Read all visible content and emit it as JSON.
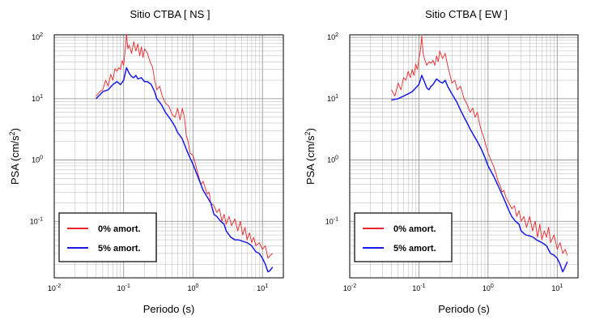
{
  "chart_data": [
    {
      "type": "line",
      "title": "Sitio CTBA [ NS ]",
      "xlabel": "Periodo (s)",
      "ylabel_main": "PSA (cm/s",
      "ylabel_sup": "2",
      "ylabel_close": ")",
      "x_scale": "log",
      "y_scale": "log",
      "xlim": [
        0.01,
        20
      ],
      "ylim": [
        0.012,
        110
      ],
      "grid": true,
      "legend_position": "bottom-left",
      "x_ticks": [
        {
          "value": 0.01,
          "base": "10",
          "exp": "-2"
        },
        {
          "value": 0.1,
          "base": "10",
          "exp": "-1"
        },
        {
          "value": 1,
          "base": "10",
          "exp": "0"
        },
        {
          "value": 10,
          "base": "10",
          "exp": "1"
        }
      ],
      "y_ticks": [
        {
          "value": 0.1,
          "base": "10",
          "exp": "-1"
        },
        {
          "value": 1,
          "base": "10",
          "exp": "0"
        },
        {
          "value": 10,
          "base": "10",
          "exp": "1"
        },
        {
          "value": 100,
          "base": "10",
          "exp": "2"
        }
      ],
      "series": [
        {
          "name": "0% amort.",
          "color": "#e8262a",
          "points": [
            [
              0.04,
              11
            ],
            [
              0.045,
              13
            ],
            [
              0.05,
              14
            ],
            [
              0.055,
              20
            ],
            [
              0.06,
              16
            ],
            [
              0.065,
              25
            ],
            [
              0.07,
              20
            ],
            [
              0.075,
              31
            ],
            [
              0.08,
              28
            ],
            [
              0.085,
              32
            ],
            [
              0.09,
              30
            ],
            [
              0.095,
              42
            ],
            [
              0.1,
              35
            ],
            [
              0.105,
              60
            ],
            [
              0.11,
              112
            ],
            [
              0.115,
              65
            ],
            [
              0.12,
              75
            ],
            [
              0.13,
              55
            ],
            [
              0.14,
              85
            ],
            [
              0.15,
              60
            ],
            [
              0.16,
              78
            ],
            [
              0.17,
              50
            ],
            [
              0.18,
              70
            ],
            [
              0.19,
              47
            ],
            [
              0.2,
              65
            ],
            [
              0.22,
              55
            ],
            [
              0.24,
              40
            ],
            [
              0.26,
              33
            ],
            [
              0.28,
              20
            ],
            [
              0.3,
              14
            ],
            [
              0.33,
              16
            ],
            [
              0.36,
              11
            ],
            [
              0.4,
              8.5
            ],
            [
              0.45,
              7.5
            ],
            [
              0.5,
              5.5
            ],
            [
              0.55,
              5
            ],
            [
              0.6,
              7
            ],
            [
              0.65,
              4.5
            ],
            [
              0.7,
              7
            ],
            [
              0.75,
              5
            ],
            [
              0.8,
              2.5
            ],
            [
              0.85,
              2
            ],
            [
              0.9,
              1.3
            ],
            [
              1.0,
              1.2
            ],
            [
              1.1,
              0.8
            ],
            [
              1.2,
              0.55
            ],
            [
              1.3,
              0.4
            ],
            [
              1.4,
              0.45
            ],
            [
              1.5,
              0.35
            ],
            [
              1.6,
              0.28
            ],
            [
              1.7,
              0.3
            ],
            [
              1.8,
              0.2
            ],
            [
              2.0,
              0.18
            ],
            [
              2.2,
              0.14
            ],
            [
              2.4,
              0.16
            ],
            [
              2.6,
              0.1
            ],
            [
              2.8,
              0.13
            ],
            [
              3.0,
              0.09
            ],
            [
              3.3,
              0.12
            ],
            [
              3.6,
              0.085
            ],
            [
              4.0,
              0.11
            ],
            [
              4.4,
              0.07
            ],
            [
              4.8,
              0.1
            ],
            [
              5.2,
              0.06
            ],
            [
              5.6,
              0.08
            ],
            [
              6.0,
              0.05
            ],
            [
              6.5,
              0.065
            ],
            [
              7.0,
              0.045
            ],
            [
              7.5,
              0.055
            ],
            [
              8.0,
              0.04
            ],
            [
              9.0,
              0.045
            ],
            [
              10.0,
              0.035
            ],
            [
              11.0,
              0.04
            ],
            [
              12.0,
              0.025
            ],
            [
              13.0,
              0.028
            ],
            [
              14.0,
              0.03
            ]
          ]
        },
        {
          "name": "5% amort.",
          "color": "#1a1ae6",
          "points": [
            [
              0.04,
              10
            ],
            [
              0.05,
              13
            ],
            [
              0.06,
              14
            ],
            [
              0.07,
              17
            ],
            [
              0.08,
              19
            ],
            [
              0.09,
              17
            ],
            [
              0.1,
              20
            ],
            [
              0.11,
              32
            ],
            [
              0.12,
              26
            ],
            [
              0.13,
              23
            ],
            [
              0.14,
              22
            ],
            [
              0.15,
              24
            ],
            [
              0.16,
              21
            ],
            [
              0.18,
              22
            ],
            [
              0.2,
              19
            ],
            [
              0.22,
              19
            ],
            [
              0.25,
              17
            ],
            [
              0.28,
              13
            ],
            [
              0.3,
              10
            ],
            [
              0.35,
              8
            ],
            [
              0.4,
              6
            ],
            [
              0.45,
              5
            ],
            [
              0.5,
              4.2
            ],
            [
              0.55,
              3.5
            ],
            [
              0.6,
              2.8
            ],
            [
              0.65,
              2.5
            ],
            [
              0.7,
              2.2
            ],
            [
              0.8,
              1.5
            ],
            [
              0.9,
              1.1
            ],
            [
              1.0,
              0.85
            ],
            [
              1.2,
              0.5
            ],
            [
              1.4,
              0.32
            ],
            [
              1.6,
              0.25
            ],
            [
              1.8,
              0.2
            ],
            [
              2.0,
              0.13
            ],
            [
              2.2,
              0.12
            ],
            [
              2.5,
              0.1
            ],
            [
              2.8,
              0.09
            ],
            [
              3.0,
              0.07
            ],
            [
              3.5,
              0.055
            ],
            [
              4.0,
              0.05
            ],
            [
              4.5,
              0.05
            ],
            [
              5.0,
              0.048
            ],
            [
              6.0,
              0.045
            ],
            [
              7.0,
              0.04
            ],
            [
              8.0,
              0.032
            ],
            [
              9.0,
              0.03
            ],
            [
              10.0,
              0.025
            ],
            [
              11.0,
              0.02
            ],
            [
              12.0,
              0.015
            ],
            [
              13.0,
              0.016
            ],
            [
              14.0,
              0.018
            ]
          ]
        }
      ]
    },
    {
      "type": "line",
      "title": "Sitio CTBA [ EW ]",
      "xlabel": "Periodo (s)",
      "ylabel_main": "PSA (cm/s",
      "ylabel_sup": "2",
      "ylabel_close": ")",
      "x_scale": "log",
      "y_scale": "log",
      "xlim": [
        0.01,
        20
      ],
      "ylim": [
        0.012,
        110
      ],
      "grid": true,
      "legend_position": "bottom-left",
      "x_ticks": [
        {
          "value": 0.01,
          "base": "10",
          "exp": "-2"
        },
        {
          "value": 0.1,
          "base": "10",
          "exp": "-1"
        },
        {
          "value": 1,
          "base": "10",
          "exp": "0"
        },
        {
          "value": 10,
          "base": "10",
          "exp": "1"
        }
      ],
      "y_ticks": [
        {
          "value": 0.1,
          "base": "10",
          "exp": "-1"
        },
        {
          "value": 1,
          "base": "10",
          "exp": "0"
        },
        {
          "value": 10,
          "base": "10",
          "exp": "1"
        },
        {
          "value": 100,
          "base": "10",
          "exp": "2"
        }
      ],
      "series": [
        {
          "name": "0% amort.",
          "color": "#e8262a",
          "points": [
            [
              0.04,
              14
            ],
            [
              0.045,
              11
            ],
            [
              0.05,
              18
            ],
            [
              0.055,
              14
            ],
            [
              0.06,
              22
            ],
            [
              0.065,
              20
            ],
            [
              0.07,
              28
            ],
            [
              0.075,
              22
            ],
            [
              0.08,
              30
            ],
            [
              0.085,
              24
            ],
            [
              0.09,
              37
            ],
            [
              0.095,
              30
            ],
            [
              0.1,
              45
            ],
            [
              0.105,
              60
            ],
            [
              0.11,
              105
            ],
            [
              0.115,
              55
            ],
            [
              0.12,
              45
            ],
            [
              0.13,
              35
            ],
            [
              0.14,
              40
            ],
            [
              0.15,
              38
            ],
            [
              0.16,
              42
            ],
            [
              0.17,
              35
            ],
            [
              0.18,
              50
            ],
            [
              0.19,
              40
            ],
            [
              0.2,
              60
            ],
            [
              0.22,
              45
            ],
            [
              0.24,
              55
            ],
            [
              0.26,
              35
            ],
            [
              0.28,
              25
            ],
            [
              0.3,
              18
            ],
            [
              0.33,
              20
            ],
            [
              0.36,
              14
            ],
            [
              0.4,
              16
            ],
            [
              0.45,
              10
            ],
            [
              0.5,
              8
            ],
            [
              0.55,
              6
            ],
            [
              0.6,
              7
            ],
            [
              0.65,
              5
            ],
            [
              0.7,
              6
            ],
            [
              0.75,
              4
            ],
            [
              0.8,
              3
            ],
            [
              0.85,
              2.5
            ],
            [
              0.9,
              2.0
            ],
            [
              1.0,
              1.3
            ],
            [
              1.1,
              1.0
            ],
            [
              1.2,
              0.8
            ],
            [
              1.3,
              0.6
            ],
            [
              1.4,
              0.45
            ],
            [
              1.5,
              0.38
            ],
            [
              1.6,
              0.3
            ],
            [
              1.7,
              0.32
            ],
            [
              1.8,
              0.25
            ],
            [
              2.0,
              0.2
            ],
            [
              2.2,
              0.16
            ],
            [
              2.4,
              0.18
            ],
            [
              2.6,
              0.12
            ],
            [
              2.8,
              0.15
            ],
            [
              3.0,
              0.1
            ],
            [
              3.3,
              0.12
            ],
            [
              3.6,
              0.08
            ],
            [
              4.0,
              0.12
            ],
            [
              4.4,
              0.07
            ],
            [
              4.8,
              0.1
            ],
            [
              5.2,
              0.055
            ],
            [
              5.6,
              0.09
            ],
            [
              6.0,
              0.05
            ],
            [
              6.5,
              0.07
            ],
            [
              7.0,
              0.055
            ],
            [
              7.5,
              0.08
            ],
            [
              8.0,
              0.045
            ],
            [
              9.0,
              0.06
            ],
            [
              10.0,
              0.035
            ],
            [
              11.0,
              0.045
            ],
            [
              12.0,
              0.03
            ],
            [
              13.0,
              0.035
            ],
            [
              14.0,
              0.028
            ]
          ]
        },
        {
          "name": "5% amort.",
          "color": "#1a1ae6",
          "points": [
            [
              0.04,
              9.5
            ],
            [
              0.05,
              10
            ],
            [
              0.06,
              11
            ],
            [
              0.07,
              12
            ],
            [
              0.08,
              13
            ],
            [
              0.09,
              15
            ],
            [
              0.1,
              17
            ],
            [
              0.11,
              24
            ],
            [
              0.12,
              19
            ],
            [
              0.13,
              15
            ],
            [
              0.14,
              14
            ],
            [
              0.15,
              16
            ],
            [
              0.16,
              17
            ],
            [
              0.18,
              21
            ],
            [
              0.2,
              19
            ],
            [
              0.22,
              18
            ],
            [
              0.24,
              20
            ],
            [
              0.26,
              16
            ],
            [
              0.3,
              12
            ],
            [
              0.35,
              9
            ],
            [
              0.4,
              6.5
            ],
            [
              0.45,
              5
            ],
            [
              0.5,
              4
            ],
            [
              0.55,
              3.2
            ],
            [
              0.6,
              2.7
            ],
            [
              0.65,
              2.3
            ],
            [
              0.7,
              2.0
            ],
            [
              0.8,
              1.5
            ],
            [
              0.9,
              1.1
            ],
            [
              1.0,
              0.8
            ],
            [
              1.2,
              0.55
            ],
            [
              1.4,
              0.38
            ],
            [
              1.6,
              0.27
            ],
            [
              1.8,
              0.2
            ],
            [
              2.0,
              0.15
            ],
            [
              2.2,
              0.12
            ],
            [
              2.5,
              0.1
            ],
            [
              2.8,
              0.09
            ],
            [
              3.0,
              0.07
            ],
            [
              3.5,
              0.06
            ],
            [
              4.0,
              0.058
            ],
            [
              4.5,
              0.055
            ],
            [
              5.0,
              0.05
            ],
            [
              6.0,
              0.045
            ],
            [
              7.0,
              0.04
            ],
            [
              8.0,
              0.03
            ],
            [
              9.0,
              0.028
            ],
            [
              10.0,
              0.025
            ],
            [
              11.0,
              0.02
            ],
            [
              12.0,
              0.015
            ],
            [
              13.0,
              0.018
            ],
            [
              14.0,
              0.022
            ]
          ]
        }
      ]
    }
  ]
}
